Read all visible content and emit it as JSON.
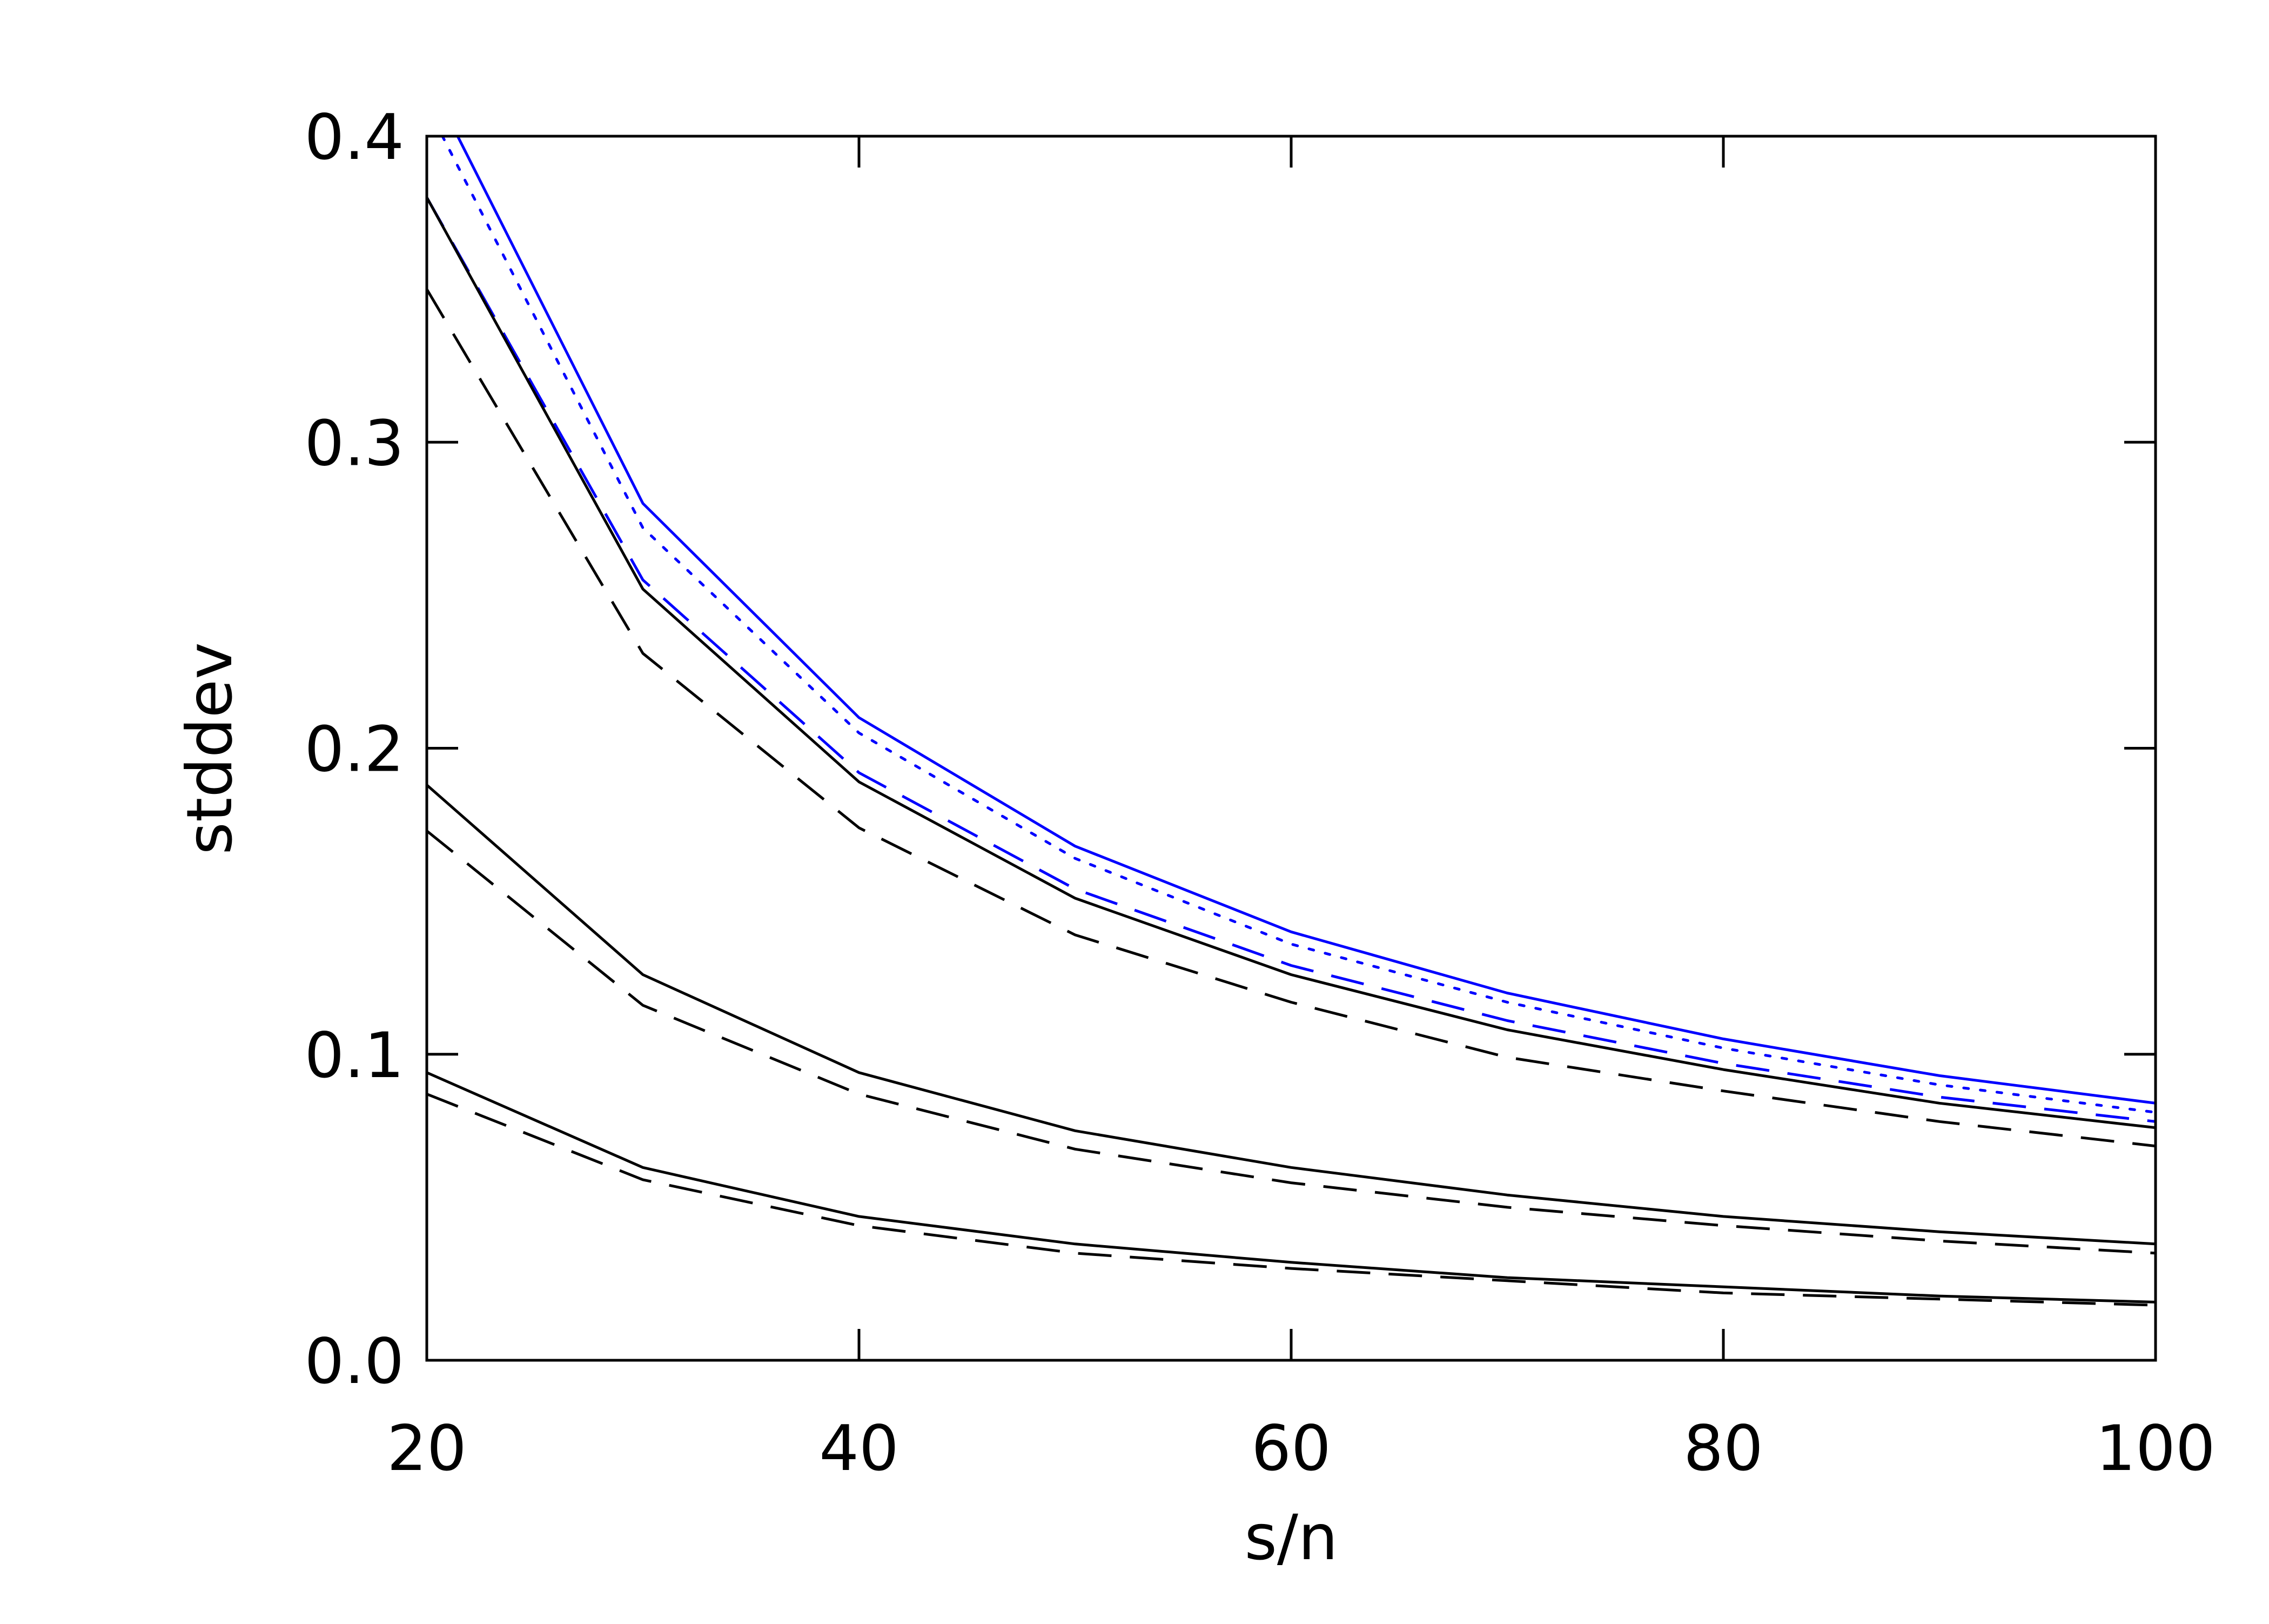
{
  "chart_data": {
    "type": "line",
    "title": "",
    "xlabel": "s/n",
    "ylabel": "stddev",
    "xlim": [
      20,
      100
    ],
    "ylim": [
      0.0,
      0.4
    ],
    "x_ticks": [
      20,
      40,
      60,
      80,
      100
    ],
    "x_tick_labels": [
      "20",
      "40",
      "60",
      "80",
      "100"
    ],
    "y_ticks": [
      0.0,
      0.1,
      0.2,
      0.3,
      0.4
    ],
    "y_tick_labels": [
      "0.0",
      "0.1",
      "0.2",
      "0.3",
      "0.4"
    ],
    "grid": false,
    "legend": "none",
    "x": [
      20,
      30,
      40,
      50,
      60,
      70,
      80,
      90,
      100
    ],
    "series": [
      {
        "color": "#0000ff",
        "dash": "solid",
        "values": [
          0.42,
          0.28,
          0.21,
          0.168,
          0.14,
          0.12,
          0.105,
          0.093,
          0.084
        ]
      },
      {
        "color": "#0000ff",
        "dash": "dotted",
        "values": [
          0.41,
          0.272,
          0.205,
          0.164,
          0.136,
          0.117,
          0.102,
          0.09,
          0.081
        ]
      },
      {
        "color": "#0000ff",
        "dash": "dashed",
        "values": [
          0.38,
          0.255,
          0.192,
          0.154,
          0.129,
          0.111,
          0.097,
          0.086,
          0.078
        ]
      },
      {
        "color": "#000000",
        "dash": "solid",
        "values": [
          0.38,
          0.252,
          0.189,
          0.151,
          0.126,
          0.108,
          0.095,
          0.084,
          0.076
        ]
      },
      {
        "color": "#000000",
        "dash": "dashed",
        "values": [
          0.35,
          0.231,
          0.174,
          0.139,
          0.117,
          0.099,
          0.088,
          0.078,
          0.07
        ]
      },
      {
        "color": "#000000",
        "dash": "solid",
        "values": [
          0.188,
          0.126,
          0.094,
          0.075,
          0.063,
          0.054,
          0.047,
          0.042,
          0.038
        ]
      },
      {
        "color": "#000000",
        "dash": "dashed",
        "values": [
          0.173,
          0.116,
          0.087,
          0.069,
          0.058,
          0.05,
          0.044,
          0.039,
          0.035
        ]
      },
      {
        "color": "#000000",
        "dash": "solid",
        "values": [
          0.094,
          0.063,
          0.047,
          0.038,
          0.032,
          0.027,
          0.024,
          0.021,
          0.019
        ]
      },
      {
        "color": "#000000",
        "dash": "dashed",
        "values": [
          0.087,
          0.059,
          0.044,
          0.035,
          0.03,
          0.026,
          0.022,
          0.02,
          0.018
        ]
      }
    ]
  }
}
